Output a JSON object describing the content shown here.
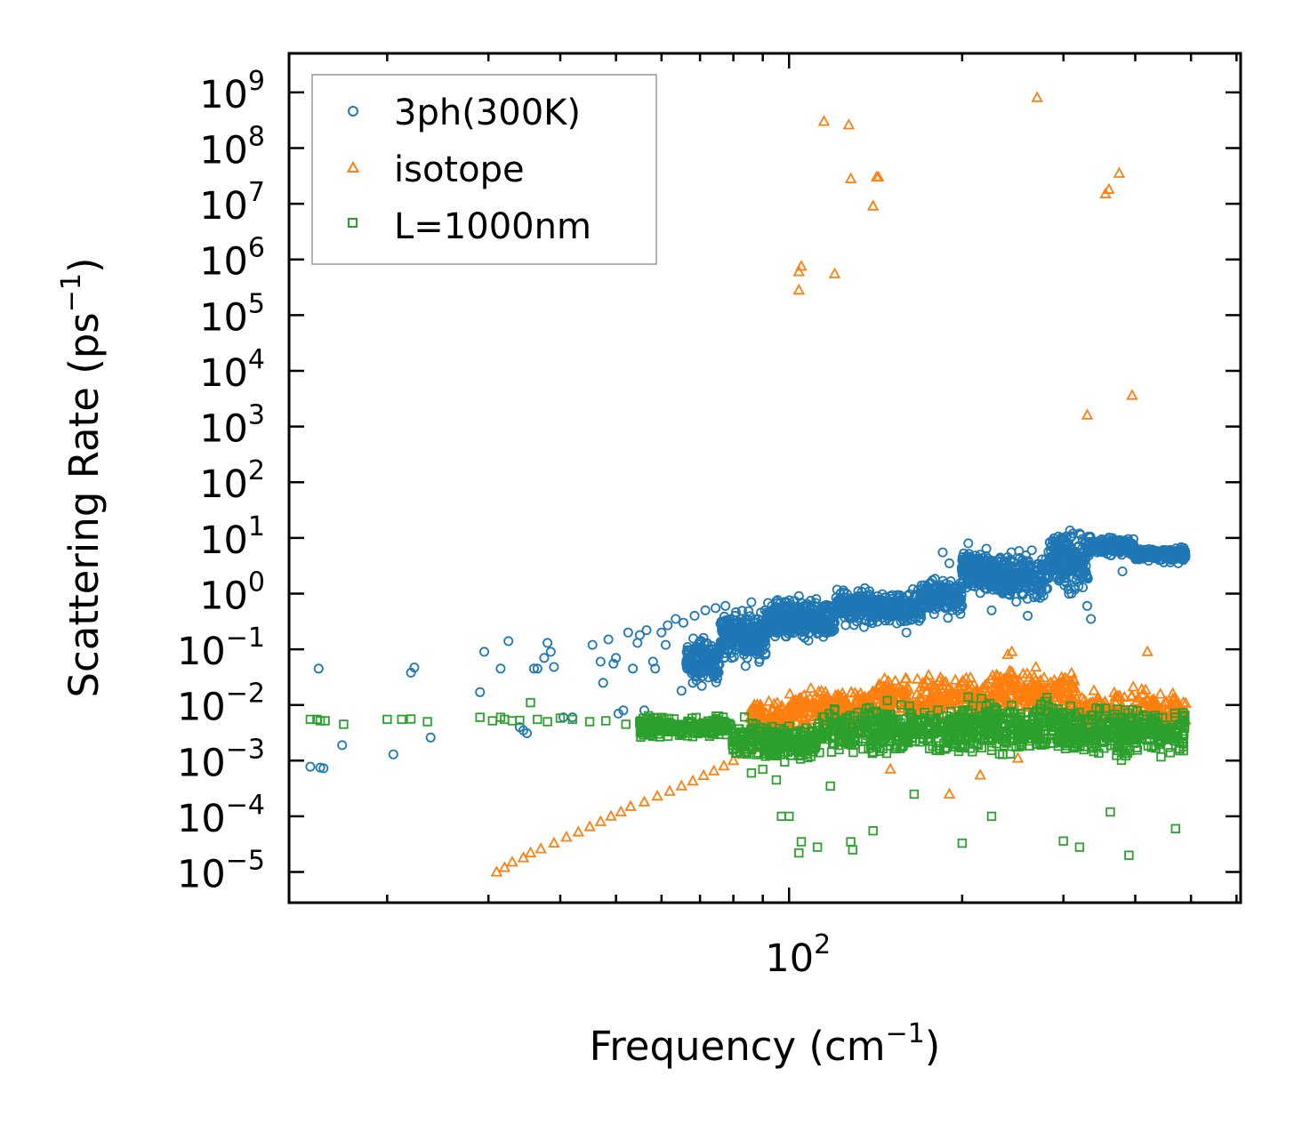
{
  "chart_data": {
    "type": "scatter",
    "xscale": "log",
    "yscale": "log",
    "xlim": [
      13.5,
      610
    ],
    "ylim_exponents": [
      -5.55,
      9.7
    ],
    "xlabel": {
      "text": "Frequency (cm",
      "sup": "−1",
      "close": ")"
    },
    "ylabel": {
      "text": "Scattering Rate (ps",
      "sup": "−1",
      "close": ")"
    },
    "x_major_ticks": [
      {
        "value": 100,
        "base": "10",
        "exp": "2"
      }
    ],
    "x_minor_ticks": [
      20,
      30,
      40,
      50,
      60,
      70,
      80,
      90,
      200,
      300,
      400,
      500,
      600
    ],
    "y_major_ticks": [
      {
        "value": -5,
        "base": "10",
        "exp": "−5"
      },
      {
        "value": -4,
        "base": "10",
        "exp": "−4"
      },
      {
        "value": -3,
        "base": "10",
        "exp": "−3"
      },
      {
        "value": -2,
        "base": "10",
        "exp": "−2"
      },
      {
        "value": -1,
        "base": "10",
        "exp": "−1"
      },
      {
        "value": 0,
        "base": "10",
        "exp": "0"
      },
      {
        "value": 1,
        "base": "10",
        "exp": "1"
      },
      {
        "value": 2,
        "base": "10",
        "exp": "2"
      },
      {
        "value": 3,
        "base": "10",
        "exp": "3"
      },
      {
        "value": 4,
        "base": "10",
        "exp": "4"
      },
      {
        "value": 5,
        "base": "10",
        "exp": "5"
      },
      {
        "value": 6,
        "base": "10",
        "exp": "6"
      },
      {
        "value": 7,
        "base": "10",
        "exp": "7"
      },
      {
        "value": 8,
        "base": "10",
        "exp": "8"
      },
      {
        "value": 9,
        "base": "10",
        "exp": "9"
      }
    ],
    "legend": {
      "position": "top-left"
    },
    "series": [
      {
        "name": "3ph(300K)",
        "marker": "circle",
        "color": "#1f77b4",
        "points": [
          [
            14.7,
            0.00078
          ],
          [
            15.3,
            0.00075
          ],
          [
            15.5,
            0.00073
          ],
          [
            16.7,
            0.0019
          ],
          [
            15.2,
            0.045
          ],
          [
            20.5,
            0.0013
          ],
          [
            22,
            0.038
          ],
          [
            22.3,
            0.047
          ],
          [
            23.8,
            0.0026
          ],
          [
            29,
            0.017
          ],
          [
            29.5,
            0.09
          ],
          [
            31.5,
            0.045
          ],
          [
            32.5,
            0.14
          ],
          [
            34,
            0.004
          ],
          [
            34.5,
            0.0035
          ],
          [
            35,
            0.0031
          ],
          [
            36,
            0.045
          ],
          [
            36.5,
            0.045
          ],
          [
            37.5,
            0.07
          ],
          [
            38,
            0.13
          ],
          [
            38.5,
            0.09
          ],
          [
            39,
            0.048
          ],
          [
            40.5,
            0.006
          ],
          [
            42,
            0.006
          ],
          [
            45.5,
            0.12
          ],
          [
            47,
            0.06
          ],
          [
            47.5,
            0.025
          ],
          [
            48.5,
            0.15
          ],
          [
            49.5,
            0.055
          ],
          [
            50,
            0.07
          ],
          [
            50.5,
            0.007
          ],
          [
            51.5,
            0.008
          ],
          [
            52.5,
            0.2
          ],
          [
            53.5,
            0.045
          ],
          [
            54.5,
            0.13
          ],
          [
            55,
            0.18
          ],
          [
            56,
            0.008
          ],
          [
            56.5,
            0.22
          ],
          [
            58,
            0.06
          ],
          [
            58.5,
            0.045
          ],
          [
            60,
            0.2
          ],
          [
            61,
            0.12
          ],
          [
            61.5,
            0.27
          ],
          [
            63.5,
            0.35
          ],
          [
            65,
            0.018
          ],
          [
            65.5,
            0.3
          ],
          [
            66.5,
            0.045
          ],
          [
            68,
            0.025
          ],
          [
            68.5,
            0.4
          ],
          [
            70.5,
            0.022
          ],
          [
            71.5,
            0.5
          ],
          [
            73,
            0.045
          ],
          [
            74.5,
            0.55
          ],
          [
            75,
            0.03
          ],
          [
            76.5,
            0.3
          ],
          [
            77.5,
            0.6
          ],
          [
            79.5,
            0.07
          ],
          [
            80.5,
            0.4
          ],
          [
            82,
            0.2
          ],
          [
            84,
            0.05
          ],
          [
            86,
            0.7
          ],
          [
            89,
            0.15
          ],
          [
            91,
            0.08
          ],
          [
            95,
            0.35
          ],
          [
            100,
            0.5
          ],
          [
            104,
            0.9
          ],
          [
            110,
            0.35
          ],
          [
            115,
            0.6
          ],
          [
            120,
            0.3
          ],
          [
            128,
            0.5
          ],
          [
            135,
            0.25
          ],
          [
            142,
            0.7
          ],
          [
            150,
            0.4
          ],
          [
            160,
            0.2
          ],
          [
            170,
            0.55
          ],
          [
            180,
            0.8
          ],
          [
            185,
            5.5
          ],
          [
            190,
            3.5
          ],
          [
            195,
            1.2
          ],
          [
            200,
            0.6
          ],
          [
            205,
            8
          ],
          [
            210,
            2
          ],
          [
            215,
            5
          ],
          [
            225,
            0.5
          ],
          [
            230,
            3
          ],
          [
            240,
            4.5
          ],
          [
            250,
            1.4
          ],
          [
            260,
            0.4
          ],
          [
            270,
            3
          ],
          [
            280,
            2
          ],
          [
            290,
            6
          ],
          [
            300,
            10
          ],
          [
            310,
            1
          ],
          [
            320,
            12
          ],
          [
            330,
            0.6
          ],
          [
            335,
            0.35
          ],
          [
            345,
            7
          ],
          [
            360,
            8
          ],
          [
            380,
            2.5
          ],
          [
            400,
            6
          ],
          [
            420,
            5
          ],
          [
            440,
            4
          ],
          [
            460,
            6
          ],
          [
            475,
            3.5
          ],
          [
            485,
            4
          ]
        ],
        "bands": [
          {
            "xlog_range": [
              1.82,
              1.88
            ],
            "center_y": -1.2,
            "spread": 0.55,
            "count": 160
          },
          {
            "xlog_range": [
              1.88,
              1.96
            ],
            "center_y": -0.75,
            "spread": 0.55,
            "count": 240
          },
          {
            "xlog_range": [
              1.96,
              2.08
            ],
            "center_y": -0.45,
            "spread": 0.45,
            "count": 320
          },
          {
            "xlog_range": [
              2.08,
              2.23
            ],
            "center_y": -0.25,
            "spread": 0.4,
            "count": 320
          },
          {
            "xlog_range": [
              2.23,
              2.3
            ],
            "center_y": -0.05,
            "spread": 0.45,
            "count": 160
          },
          {
            "xlog_range": [
              2.3,
              2.35
            ],
            "center_y": 0.4,
            "spread": 0.5,
            "count": 160
          },
          {
            "xlog_range": [
              2.35,
              2.45
            ],
            "center_y": 0.3,
            "spread": 0.55,
            "count": 260
          },
          {
            "xlog_range": [
              2.45,
              2.52
            ],
            "center_y": 0.6,
            "spread": 0.7,
            "count": 200
          },
          {
            "xlog_range": [
              2.52,
              2.6
            ],
            "center_y": 0.85,
            "spread": 0.2,
            "count": 200
          },
          {
            "xlog_range": [
              2.6,
              2.69
            ],
            "center_y": 0.7,
            "spread": 0.15,
            "count": 200
          }
        ]
      },
      {
        "name": "isotope",
        "marker": "triangle",
        "color": "#ff7f0e",
        "points": [
          [
            31,
            1e-05
          ],
          [
            32,
            1.2e-05
          ],
          [
            33,
            1.5e-05
          ],
          [
            34.5,
            1.8e-05
          ],
          [
            35.5,
            2.2e-05
          ],
          [
            37,
            2.6e-05
          ],
          [
            39,
            3.3e-05
          ],
          [
            41,
            4.2e-05
          ],
          [
            43,
            5.2e-05
          ],
          [
            45,
            6.5e-05
          ],
          [
            47,
            8e-05
          ],
          [
            49,
            0.0001
          ],
          [
            51,
            0.00012
          ],
          [
            53,
            0.00015
          ],
          [
            56,
            0.00018
          ],
          [
            59,
            0.00023
          ],
          [
            62,
            0.00028
          ],
          [
            65,
            0.00035
          ],
          [
            68,
            0.00043
          ],
          [
            71,
            0.00054
          ],
          [
            74,
            0.00065
          ],
          [
            77,
            0.0008
          ],
          [
            80,
            0.001
          ],
          [
            83,
            0.0013
          ],
          [
            86,
            0.0016
          ],
          [
            104,
            600000.0
          ],
          [
            104,
            280000.0
          ],
          [
            105,
            750000.0
          ],
          [
            115,
            300000000.0
          ],
          [
            120,
            550000.0
          ],
          [
            127,
            260000000.0
          ],
          [
            128,
            28000000.0
          ],
          [
            140,
            9000000.0
          ],
          [
            142,
            30000000.0
          ],
          [
            143,
            30000000.0
          ],
          [
            270,
            800000000.0
          ],
          [
            330,
            1600.0
          ],
          [
            355,
            15000000.0
          ],
          [
            360,
            18000000.0
          ],
          [
            375,
            35000000.0
          ],
          [
            395,
            3600.0
          ],
          [
            420,
            0.09
          ],
          [
            240,
            0.08
          ],
          [
            244,
            0.09
          ],
          [
            150,
            0.0007
          ],
          [
            190,
            0.00025
          ],
          [
            215,
            0.00055
          ],
          [
            250,
            0.0011
          ]
        ],
        "bands": [
          {
            "xlog_range": [
              1.93,
              2.0
            ],
            "center_y": -2.3,
            "spread": 0.45,
            "count": 160
          },
          {
            "xlog_range": [
              2.0,
              2.15
            ],
            "center_y": -2.05,
            "spread": 0.45,
            "count": 240
          },
          {
            "xlog_range": [
              2.15,
              2.35
            ],
            "center_y": -1.9,
            "spread": 0.5,
            "count": 260
          },
          {
            "xlog_range": [
              2.35,
              2.5
            ],
            "center_y": -1.8,
            "spread": 0.55,
            "count": 220
          },
          {
            "xlog_range": [
              2.5,
              2.69
            ],
            "center_y": -2.1,
            "spread": 0.5,
            "count": 220
          }
        ]
      },
      {
        "name": "L=1000nm",
        "marker": "square",
        "color": "#2ca02c",
        "points": [
          [
            14.7,
            0.0055
          ],
          [
            15.1,
            0.0055
          ],
          [
            15.3,
            0.0052
          ],
          [
            15.6,
            0.0052
          ],
          [
            16.8,
            0.0045
          ],
          [
            20,
            0.0055
          ],
          [
            21.2,
            0.0055
          ],
          [
            22,
            0.0056
          ],
          [
            23.5,
            0.005
          ],
          [
            29,
            0.006
          ],
          [
            30.5,
            0.0052
          ],
          [
            31.5,
            0.006
          ],
          [
            32,
            0.0055
          ],
          [
            33,
            0.0052
          ],
          [
            34,
            0.0053
          ],
          [
            35.5,
            0.011
          ],
          [
            36.5,
            0.0055
          ],
          [
            38,
            0.005
          ],
          [
            40,
            0.0058
          ],
          [
            42,
            0.0055
          ],
          [
            45,
            0.005
          ],
          [
            48,
            0.0052
          ],
          [
            52,
            0.0045
          ],
          [
            55,
            0.0048
          ],
          [
            58,
            0.0042
          ],
          [
            62,
            0.0043
          ],
          [
            66,
            0.004
          ],
          [
            70,
            0.0042
          ],
          [
            75,
            0.0035
          ],
          [
            80,
            0.0032
          ],
          [
            85,
            0.0028
          ],
          [
            90,
            0.0028
          ],
          [
            95,
            0.0025
          ],
          [
            86,
            0.0006
          ],
          [
            90,
            0.0007
          ],
          [
            95,
            0.00045
          ],
          [
            97,
            0.0001
          ],
          [
            100,
            0.0001
          ],
          [
            104,
            2.2e-05
          ],
          [
            105,
            3.5e-05
          ],
          [
            112,
            2.8e-05
          ],
          [
            118,
            0.00035
          ],
          [
            128,
            3.5e-05
          ],
          [
            129,
            2.5e-05
          ],
          [
            140,
            5.5e-05
          ],
          [
            165,
            0.00025
          ],
          [
            200,
            3.3e-05
          ],
          [
            225,
            0.0001
          ],
          [
            300,
            3.6e-05
          ],
          [
            320,
            2.8e-05
          ],
          [
            362,
            0.00012
          ],
          [
            390,
            2e-05
          ],
          [
            470,
            6e-05
          ]
        ],
        "bands": [
          {
            "xlog_range": [
              1.74,
              1.9
            ],
            "center_y": -2.4,
            "spread": 0.25,
            "count": 220
          },
          {
            "xlog_range": [
              1.9,
              2.05
            ],
            "center_y": -2.65,
            "spread": 0.45,
            "count": 280
          },
          {
            "xlog_range": [
              2.05,
              2.3
            ],
            "center_y": -2.45,
            "spread": 0.55,
            "count": 380
          },
          {
            "xlog_range": [
              2.3,
              2.5
            ],
            "center_y": -2.4,
            "spread": 0.6,
            "count": 360
          },
          {
            "xlog_range": [
              2.5,
              2.69
            ],
            "center_y": -2.5,
            "spread": 0.55,
            "count": 300
          }
        ]
      }
    ]
  }
}
